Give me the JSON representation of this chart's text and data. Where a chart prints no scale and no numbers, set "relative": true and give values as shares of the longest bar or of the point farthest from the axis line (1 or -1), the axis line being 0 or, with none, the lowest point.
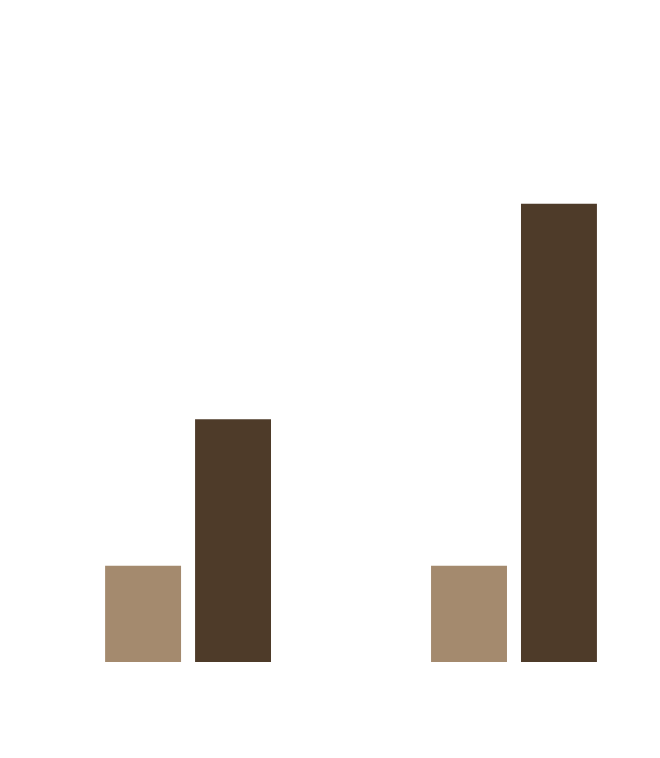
{
  "chart_data": {
    "type": "bar",
    "relative": true,
    "categories": [
      null,
      null
    ],
    "series": [
      {
        "color": "#a48a6e",
        "values": [
          0.21,
          0.21
        ]
      },
      {
        "color": "#4e3b29",
        "values": [
          0.53,
          1
        ]
      }
    ]
  }
}
